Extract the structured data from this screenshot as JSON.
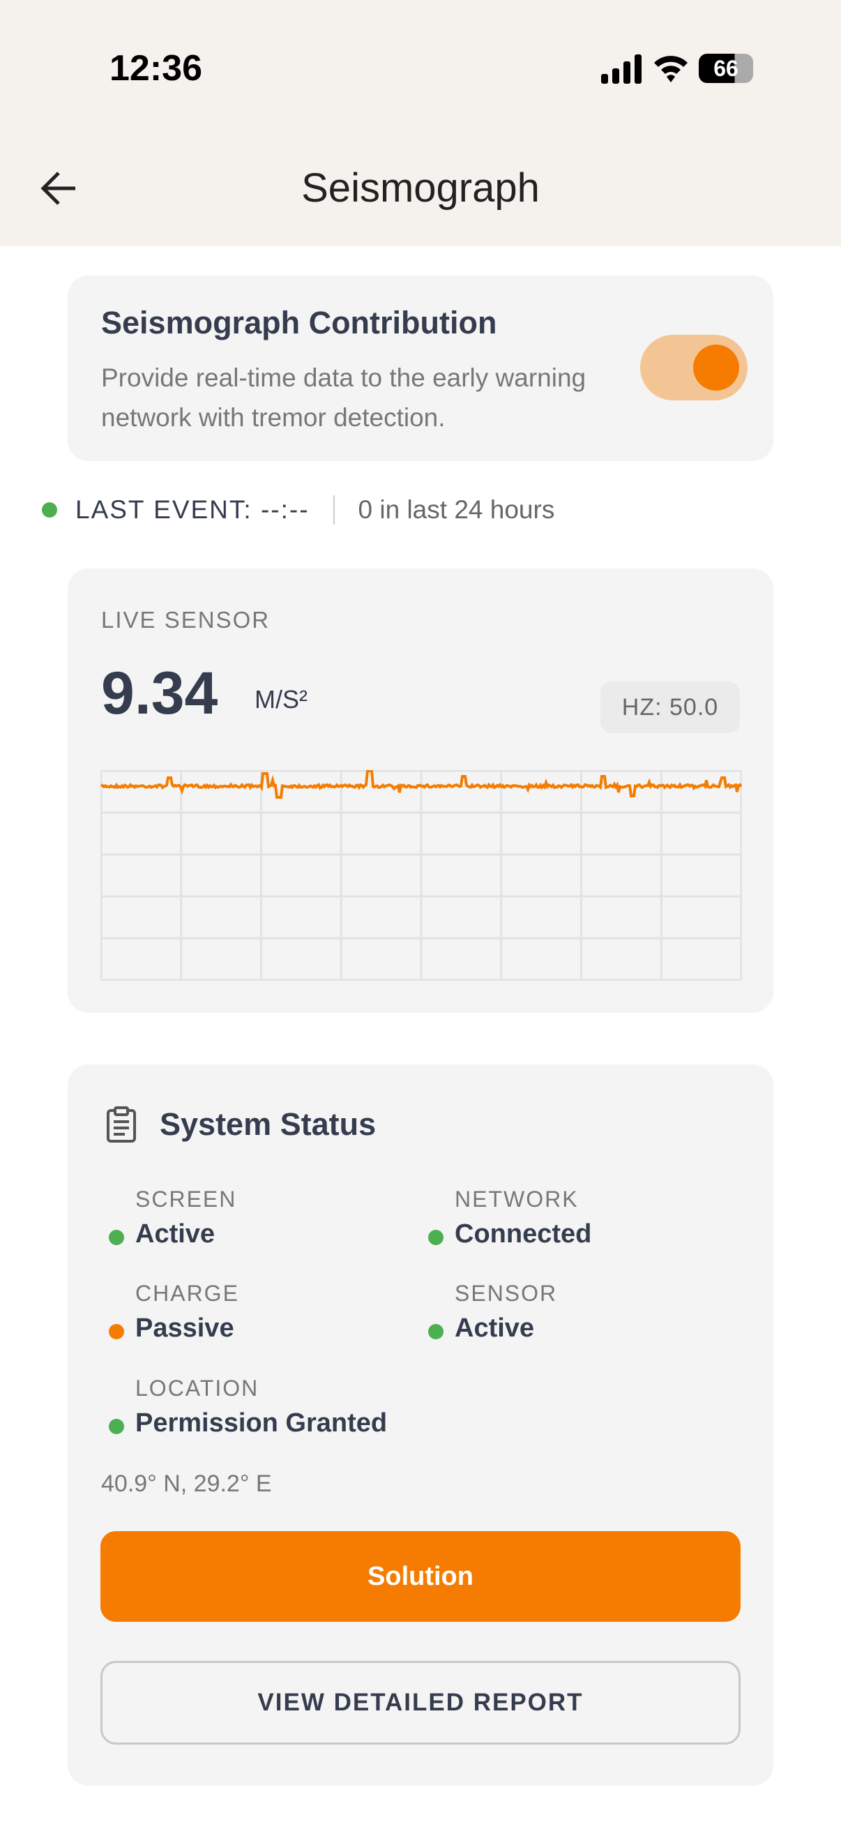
{
  "status_bar": {
    "time": "12:36",
    "battery": "66"
  },
  "header": {
    "title": "Seismograph"
  },
  "contribution": {
    "title": "Seismograph Contribution",
    "description": "Provide real-time data to the early warning network with tremor detection.",
    "enabled": true
  },
  "last_event": {
    "label": "LAST EVENT: --:--",
    "count": "0 in last 24 hours"
  },
  "live_sensor": {
    "label": "LIVE SENSOR",
    "value": "9.34",
    "unit": "M/S²",
    "rate": "HZ: 50.0"
  },
  "system_status": {
    "title": "System Status",
    "items": [
      {
        "label": "SCREEN",
        "value": "Active",
        "status": "green"
      },
      {
        "label": "NETWORK",
        "value": "Connected",
        "status": "green"
      },
      {
        "label": "CHARGE",
        "value": "Passive",
        "status": "orange"
      },
      {
        "label": "SENSOR",
        "value": "Active",
        "status": "green"
      },
      {
        "label": "LOCATION",
        "value": "Permission Granted",
        "status": "green"
      }
    ],
    "coordinates": "40.9° N, 29.2° E",
    "solution_label": "Solution",
    "report_label": "VIEW DETAILED REPORT"
  },
  "colors": {
    "accent": "#f57c00",
    "ok": "#4caf50",
    "text": "#343c4e"
  }
}
